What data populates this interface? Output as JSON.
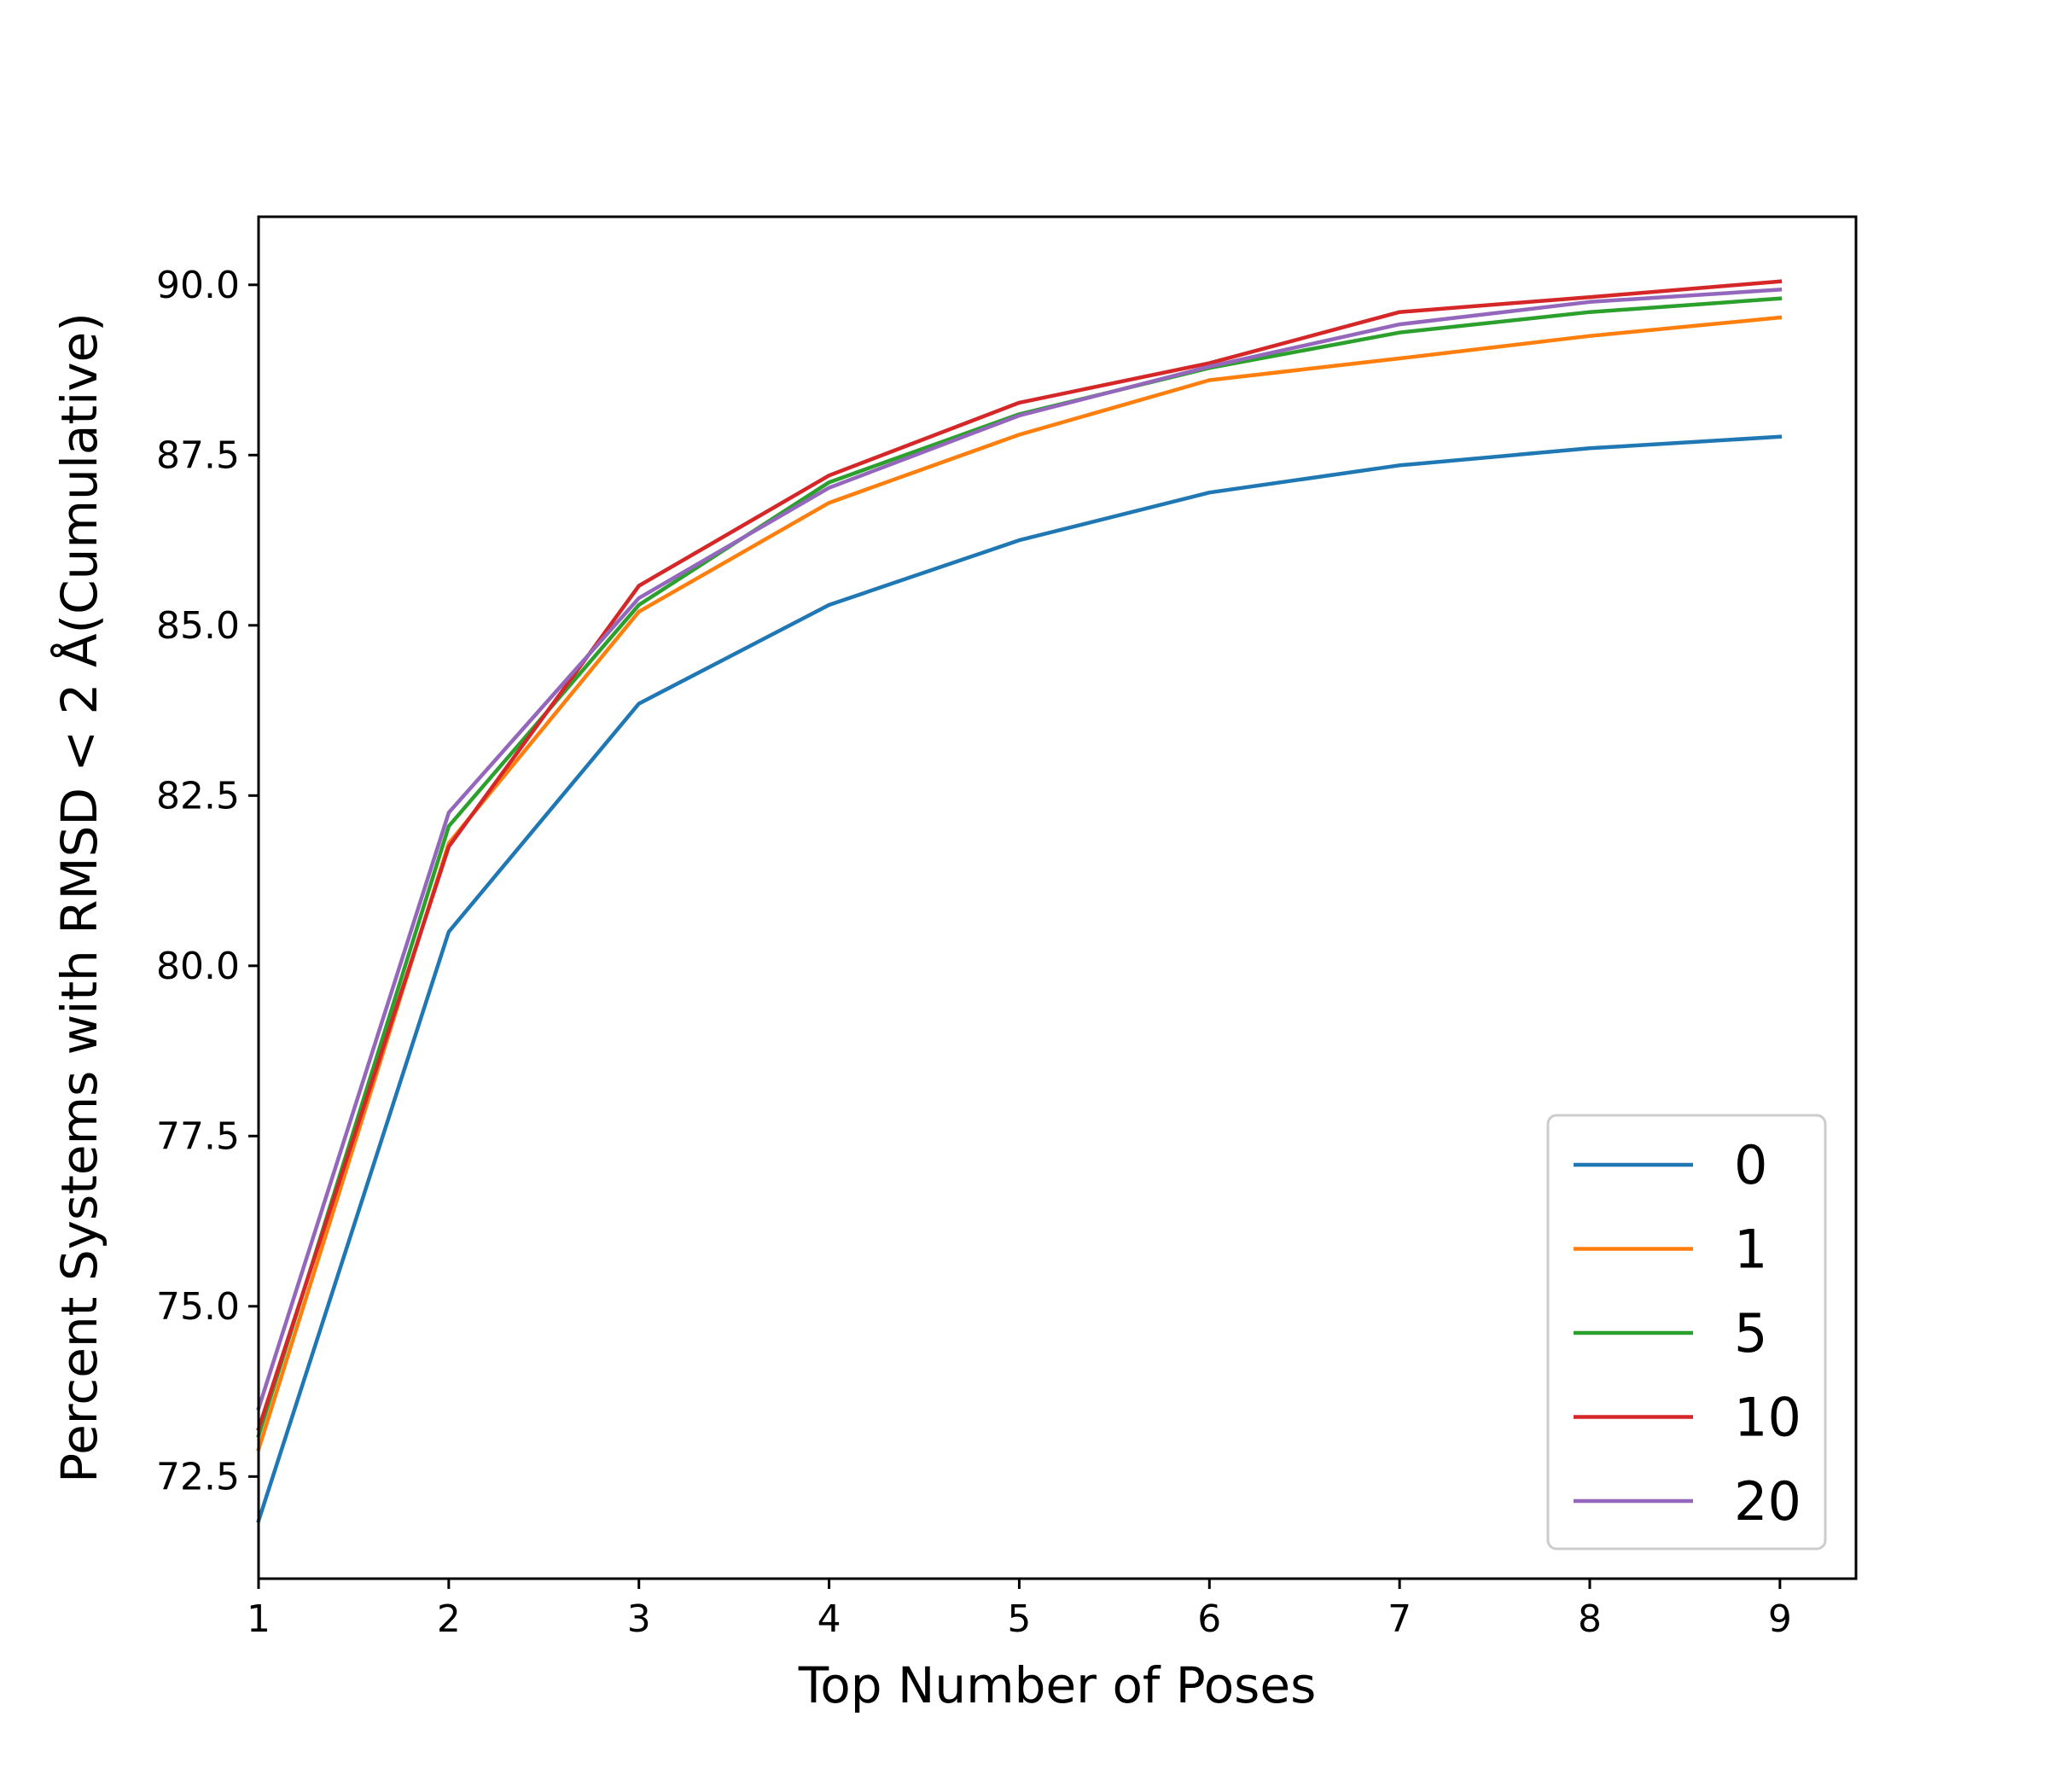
{
  "chart_data": {
    "type": "line",
    "title": "",
    "xlabel": "Top Number of Poses",
    "ylabel": "Percent Systems with RMSD < 2 Å(Cumulative)",
    "x": [
      1,
      2,
      3,
      4,
      5,
      6,
      7,
      8,
      9
    ],
    "xlim": [
      1,
      9.4
    ],
    "ylim": [
      71.0,
      91.0
    ],
    "xticks": [
      1,
      2,
      3,
      4,
      5,
      6,
      7,
      8,
      9
    ],
    "yticks": [
      72.5,
      75.0,
      77.5,
      80.0,
      82.5,
      85.0,
      87.5,
      90.0
    ],
    "grid": false,
    "legend_position": "lower-right",
    "series": [
      {
        "name": "0",
        "color": "#1f77b4",
        "values": [
          71.85,
          80.5,
          83.85,
          85.3,
          86.25,
          86.95,
          87.35,
          87.6,
          87.77
        ]
      },
      {
        "name": "1",
        "color": "#ff7f0e",
        "values": [
          72.9,
          81.8,
          85.2,
          86.8,
          87.8,
          88.6,
          88.92,
          89.25,
          89.52
        ]
      },
      {
        "name": "5",
        "color": "#2ca02c",
        "values": [
          73.1,
          82.05,
          85.3,
          87.1,
          88.1,
          88.78,
          89.3,
          89.6,
          89.8
        ]
      },
      {
        "name": "10",
        "color": "#d62728",
        "values": [
          73.2,
          81.75,
          85.58,
          87.2,
          88.27,
          88.85,
          89.6,
          89.82,
          90.05
        ]
      },
      {
        "name": "20",
        "color": "#9467bd",
        "values": [
          73.5,
          82.25,
          85.4,
          87.02,
          88.08,
          88.8,
          89.42,
          89.75,
          89.93
        ]
      }
    ]
  }
}
